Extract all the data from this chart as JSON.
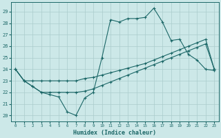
{
  "xlabel": "Humidex (Indice chaleur)",
  "ylabel": "",
  "background_color": "#cce8e8",
  "grid_color": "#aacccc",
  "line_color": "#1a6666",
  "xlim": [
    -0.5,
    23.5
  ],
  "ylim": [
    19.5,
    29.8
  ],
  "yticks": [
    20,
    21,
    22,
    23,
    24,
    25,
    26,
    27,
    28,
    29
  ],
  "xticks": [
    0,
    1,
    2,
    3,
    4,
    5,
    6,
    7,
    8,
    9,
    10,
    11,
    12,
    13,
    14,
    15,
    16,
    17,
    18,
    19,
    20,
    21,
    22,
    23
  ],
  "line1_x": [
    0,
    1,
    2,
    3,
    4,
    5,
    6,
    7,
    8,
    9,
    10,
    11,
    12,
    13,
    14,
    15,
    16,
    17,
    18,
    19,
    20,
    21,
    22,
    23
  ],
  "line1_y": [
    24,
    23,
    22.5,
    22,
    21.8,
    21.6,
    20.3,
    20.0,
    21.5,
    22.0,
    25.0,
    28.3,
    28.1,
    28.4,
    28.4,
    28.5,
    29.3,
    28.1,
    26.5,
    26.6,
    25.3,
    24.8,
    24.0,
    23.9
  ],
  "line2_x": [
    0,
    1,
    2,
    3,
    4,
    5,
    6,
    7,
    8,
    9,
    10,
    11,
    12,
    13,
    14,
    15,
    16,
    17,
    18,
    19,
    20,
    21,
    22,
    23
  ],
  "line2_y": [
    24,
    23,
    23,
    23,
    23,
    23.0,
    23.0,
    23.0,
    23.2,
    23.3,
    23.5,
    23.7,
    23.9,
    24.1,
    24.3,
    24.5,
    24.8,
    25.1,
    25.4,
    25.7,
    26.0,
    26.3,
    26.6,
    24.0
  ],
  "line3_x": [
    0,
    1,
    2,
    3,
    4,
    5,
    6,
    7,
    8,
    9,
    10,
    11,
    12,
    13,
    14,
    15,
    16,
    17,
    18,
    19,
    20,
    21,
    22,
    23
  ],
  "line3_y": [
    24,
    23,
    22.5,
    22.0,
    22.0,
    22.0,
    22.0,
    22.0,
    22.1,
    22.3,
    22.6,
    22.9,
    23.2,
    23.5,
    23.8,
    24.1,
    24.4,
    24.7,
    25.0,
    25.3,
    25.6,
    25.9,
    26.2,
    24.0
  ]
}
